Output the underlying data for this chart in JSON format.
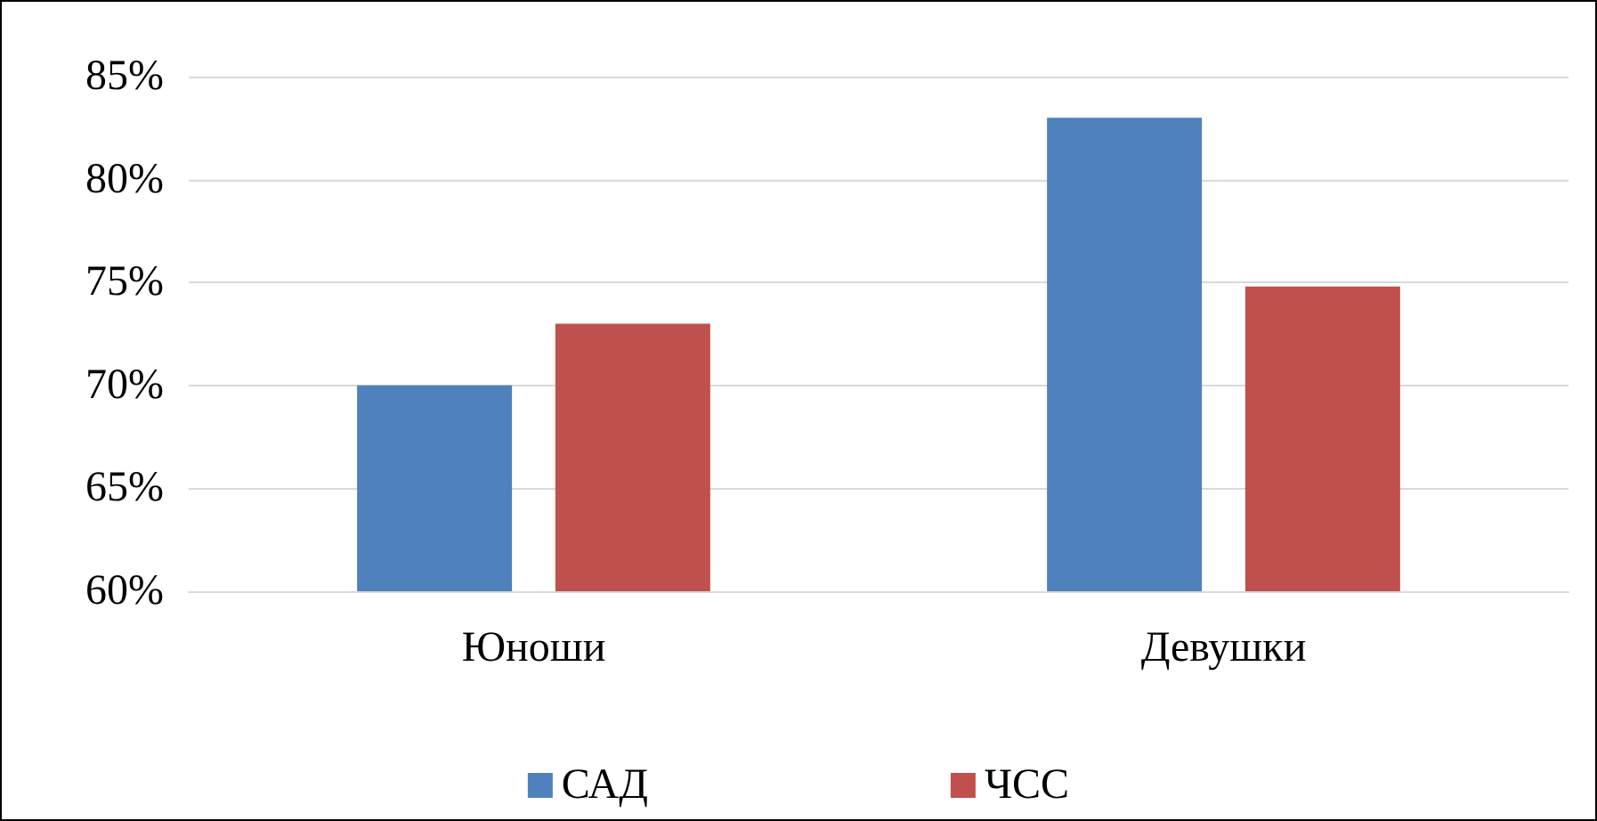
{
  "chart_data": {
    "type": "bar",
    "categories": [
      "Юноши",
      "Девушки"
    ],
    "series": [
      {
        "name": "САД",
        "color": "#4f81bd",
        "values": [
          70,
          83
        ]
      },
      {
        "name": "ЧСС",
        "color": "#c0504d",
        "values": [
          73,
          74.8
        ]
      }
    ],
    "ylim": [
      60,
      85
    ],
    "yticks": [
      {
        "value": 60,
        "label": "60%"
      },
      {
        "value": 65,
        "label": "65%"
      },
      {
        "value": 70,
        "label": "70%"
      },
      {
        "value": 75,
        "label": "75%"
      },
      {
        "value": 80,
        "label": "80%"
      },
      {
        "value": 85,
        "label": "85%"
      }
    ],
    "grid": "y",
    "legend": "bottom"
  }
}
